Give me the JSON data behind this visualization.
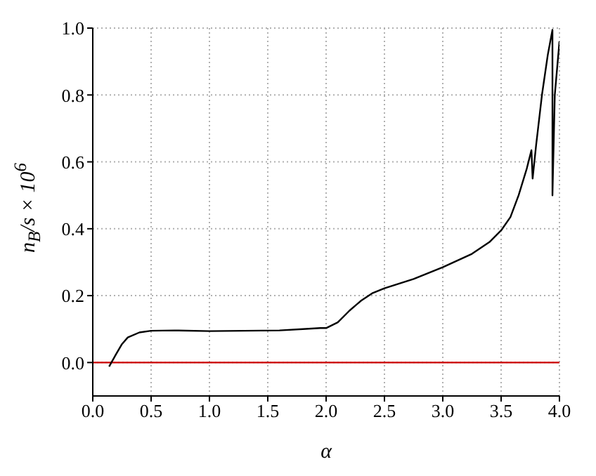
{
  "chart_data": {
    "type": "line",
    "xlabel": "α",
    "ylabel": "n$_{B}$/s × 10$^{6}$",
    "x": [
      0.14,
      0.2,
      0.25,
      0.3,
      0.4,
      0.5,
      0.7,
      1.0,
      1.3,
      1.6,
      1.8,
      1.95,
      2.0,
      2.1,
      2.2,
      2.3,
      2.4,
      2.5,
      2.75,
      3.0,
      3.25,
      3.4,
      3.5,
      3.58,
      3.65,
      3.72,
      3.76,
      3.77,
      3.8,
      3.85,
      3.9,
      3.94,
      3.94,
      3.96,
      4.0
    ],
    "series": [
      {
        "color": "#000000",
        "values": [
          -0.012,
          0.025,
          0.055,
          0.075,
          0.09,
          0.095,
          0.096,
          0.094,
          0.095,
          0.096,
          0.1,
          0.103,
          0.103,
          0.12,
          0.155,
          0.185,
          0.208,
          0.222,
          0.25,
          0.285,
          0.325,
          0.36,
          0.395,
          0.435,
          0.5,
          0.58,
          0.635,
          0.55,
          0.65,
          0.8,
          0.92,
          0.995,
          0.5,
          0.8,
          0.96
        ]
      }
    ],
    "xlim": [
      0,
      4
    ],
    "xticks": [
      {
        "value": 0,
        "label": "0.0"
      },
      0.5,
      {
        "value": 1,
        "label": "1.0"
      },
      1.5,
      {
        "value": 2,
        "label": "2.0"
      },
      2.5,
      {
        "value": 3,
        "label": "3.0"
      },
      3.5,
      {
        "value": 4,
        "label": "4.0"
      }
    ],
    "ylim": [
      -0.1,
      1
    ],
    "yticks": [
      {
        "value": 0,
        "label": "0.0"
      },
      0.2,
      0.4,
      0.6,
      0.8,
      {
        "value": 1,
        "label": "1.0"
      }
    ],
    "grid": true,
    "line_style": "solid",
    "marker": "none",
    "legend": false,
    "ref_lines": [
      {
        "axis": "y",
        "value": 0,
        "color": "#cc0000",
        "line_style": "solid"
      }
    ]
  }
}
